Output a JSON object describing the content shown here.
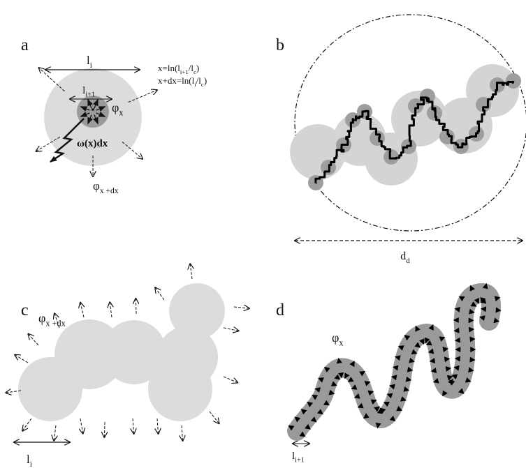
{
  "panels": [
    {
      "label": "a"
    },
    {
      "label": "b"
    },
    {
      "label": "c"
    },
    {
      "label": "d"
    }
  ],
  "panel_a": {
    "outer_size": [
      "l",
      "i"
    ],
    "inner_size": [
      "l",
      "i+1"
    ],
    "eq1": [
      "x=ln(l",
      "i+1",
      "/l",
      "c",
      ")"
    ],
    "eq2": [
      "x+dx=ln(l",
      "i",
      "/l",
      "c",
      ")"
    ],
    "inner_flux": [
      "φ",
      "x"
    ],
    "rate": [
      "ω(x)dx"
    ],
    "outer_flux": [
      "φ",
      "x +dx"
    ]
  },
  "panel_b": {
    "diameter": [
      "d",
      "d"
    ]
  },
  "panel_c": {
    "flux": [
      "φ",
      "x +dx"
    ],
    "size": [
      "l",
      "i"
    ]
  },
  "panel_d": {
    "flux": [
      "φ",
      "x"
    ],
    "size": [
      "l",
      "i+1"
    ]
  }
}
